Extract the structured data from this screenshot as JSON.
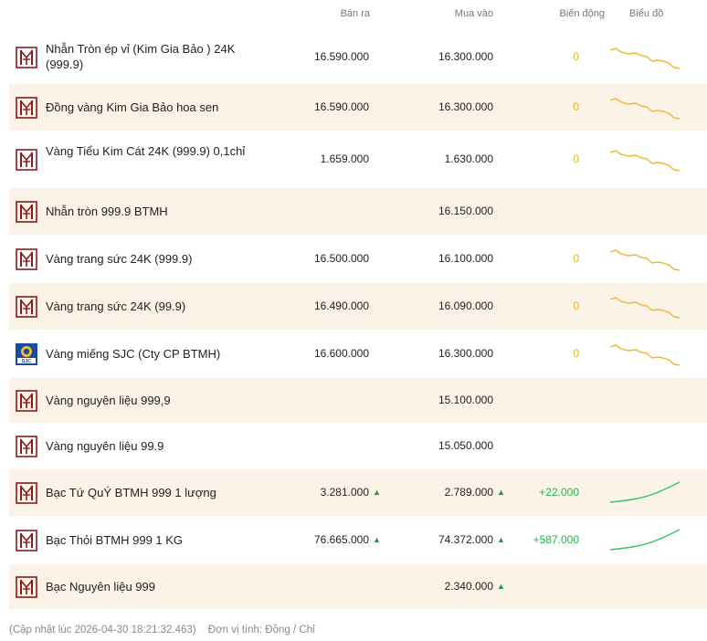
{
  "header": {
    "sell": "Bán ra",
    "buy": "Mua vào",
    "change": "Biến động",
    "chart": "Biểu đồ"
  },
  "rows": [
    {
      "name": "Nhẫn Tròn ép vỉ (Kim Gia Bảo ) 24K (999.9)",
      "logo": "btmh-logo",
      "sell": "16.590.000",
      "buy": "16.300.000",
      "change": "0",
      "trend": "down"
    },
    {
      "name": "Đồng vàng Kim Gia Bảo hoa sen",
      "logo": "btmh-logo",
      "sell": "16.590.000",
      "buy": "16.300.000",
      "change": "0",
      "trend": "down"
    },
    {
      "name": "Vàng Tiểu Kim Cát 24K (999.9) 0,1chỉ",
      "logo": "btmh-logo",
      "sell": "1.659.000",
      "buy": "1.630.000",
      "change": "0",
      "trend": "down"
    },
    {
      "name": "Nhẫn tròn 999.9 BTMH",
      "logo": "btmh-logo",
      "sell": "",
      "buy": "16.150.000",
      "change": "",
      "trend": ""
    },
    {
      "name": "Vàng trang sức 24K (999.9)",
      "logo": "btmh-logo",
      "sell": "16.500.000",
      "buy": "16.100.000",
      "change": "0",
      "trend": "down"
    },
    {
      "name": "Vàng trang sức 24K (99.9)",
      "logo": "btmh-logo",
      "sell": "16.490.000",
      "buy": "16.090.000",
      "change": "0",
      "trend": "down"
    },
    {
      "name": "Vàng miếng SJC (Cty CP BTMH)",
      "logo": "sjc-logo",
      "sell": "16.600.000",
      "buy": "16.300.000",
      "change": "0",
      "trend": "down"
    },
    {
      "name": "Vàng nguyên liệu 999,9",
      "logo": "btmh-logo",
      "sell": "",
      "buy": "15.100.000",
      "change": "",
      "trend": ""
    },
    {
      "name": "Vàng nguyên liệu 99.9",
      "logo": "btmh-logo",
      "sell": "",
      "buy": "15.050.000",
      "change": "",
      "trend": ""
    },
    {
      "name": "Bạc Tứ QuÝ BTMH 999 1 lượng",
      "logo": "btmh-logo",
      "sell": "3.281.000",
      "buy": "2.789.000",
      "change": "+22.000",
      "trend": "up",
      "sell_up": true,
      "buy_up": true
    },
    {
      "name": "Bạc Thỏi BTMH 999 1 KG",
      "logo": "btmh-logo",
      "sell": "76.665.000",
      "buy": "74.372.000",
      "change": "+587.000",
      "trend": "up",
      "sell_up": true,
      "buy_up": true
    },
    {
      "name": "Bạc Nguyên liệu 999",
      "logo": "btmh-logo",
      "sell": "",
      "buy": "2.340.000",
      "change": "",
      "trend": "",
      "buy_up": true
    }
  ],
  "footer": {
    "updated": "(Cập nhật lúc 2026-04-30 18:21:32.463)",
    "unit": "Đơn vị tính: Đồng / Chỉ"
  },
  "colors": {
    "alt_row": "#fbf3e8",
    "logo_red": "#8b1a1a",
    "zero_change": "#e6b21c",
    "up_change": "#1fb84a",
    "spark_down": "#f0b430",
    "spark_up": "#2fc36a"
  }
}
